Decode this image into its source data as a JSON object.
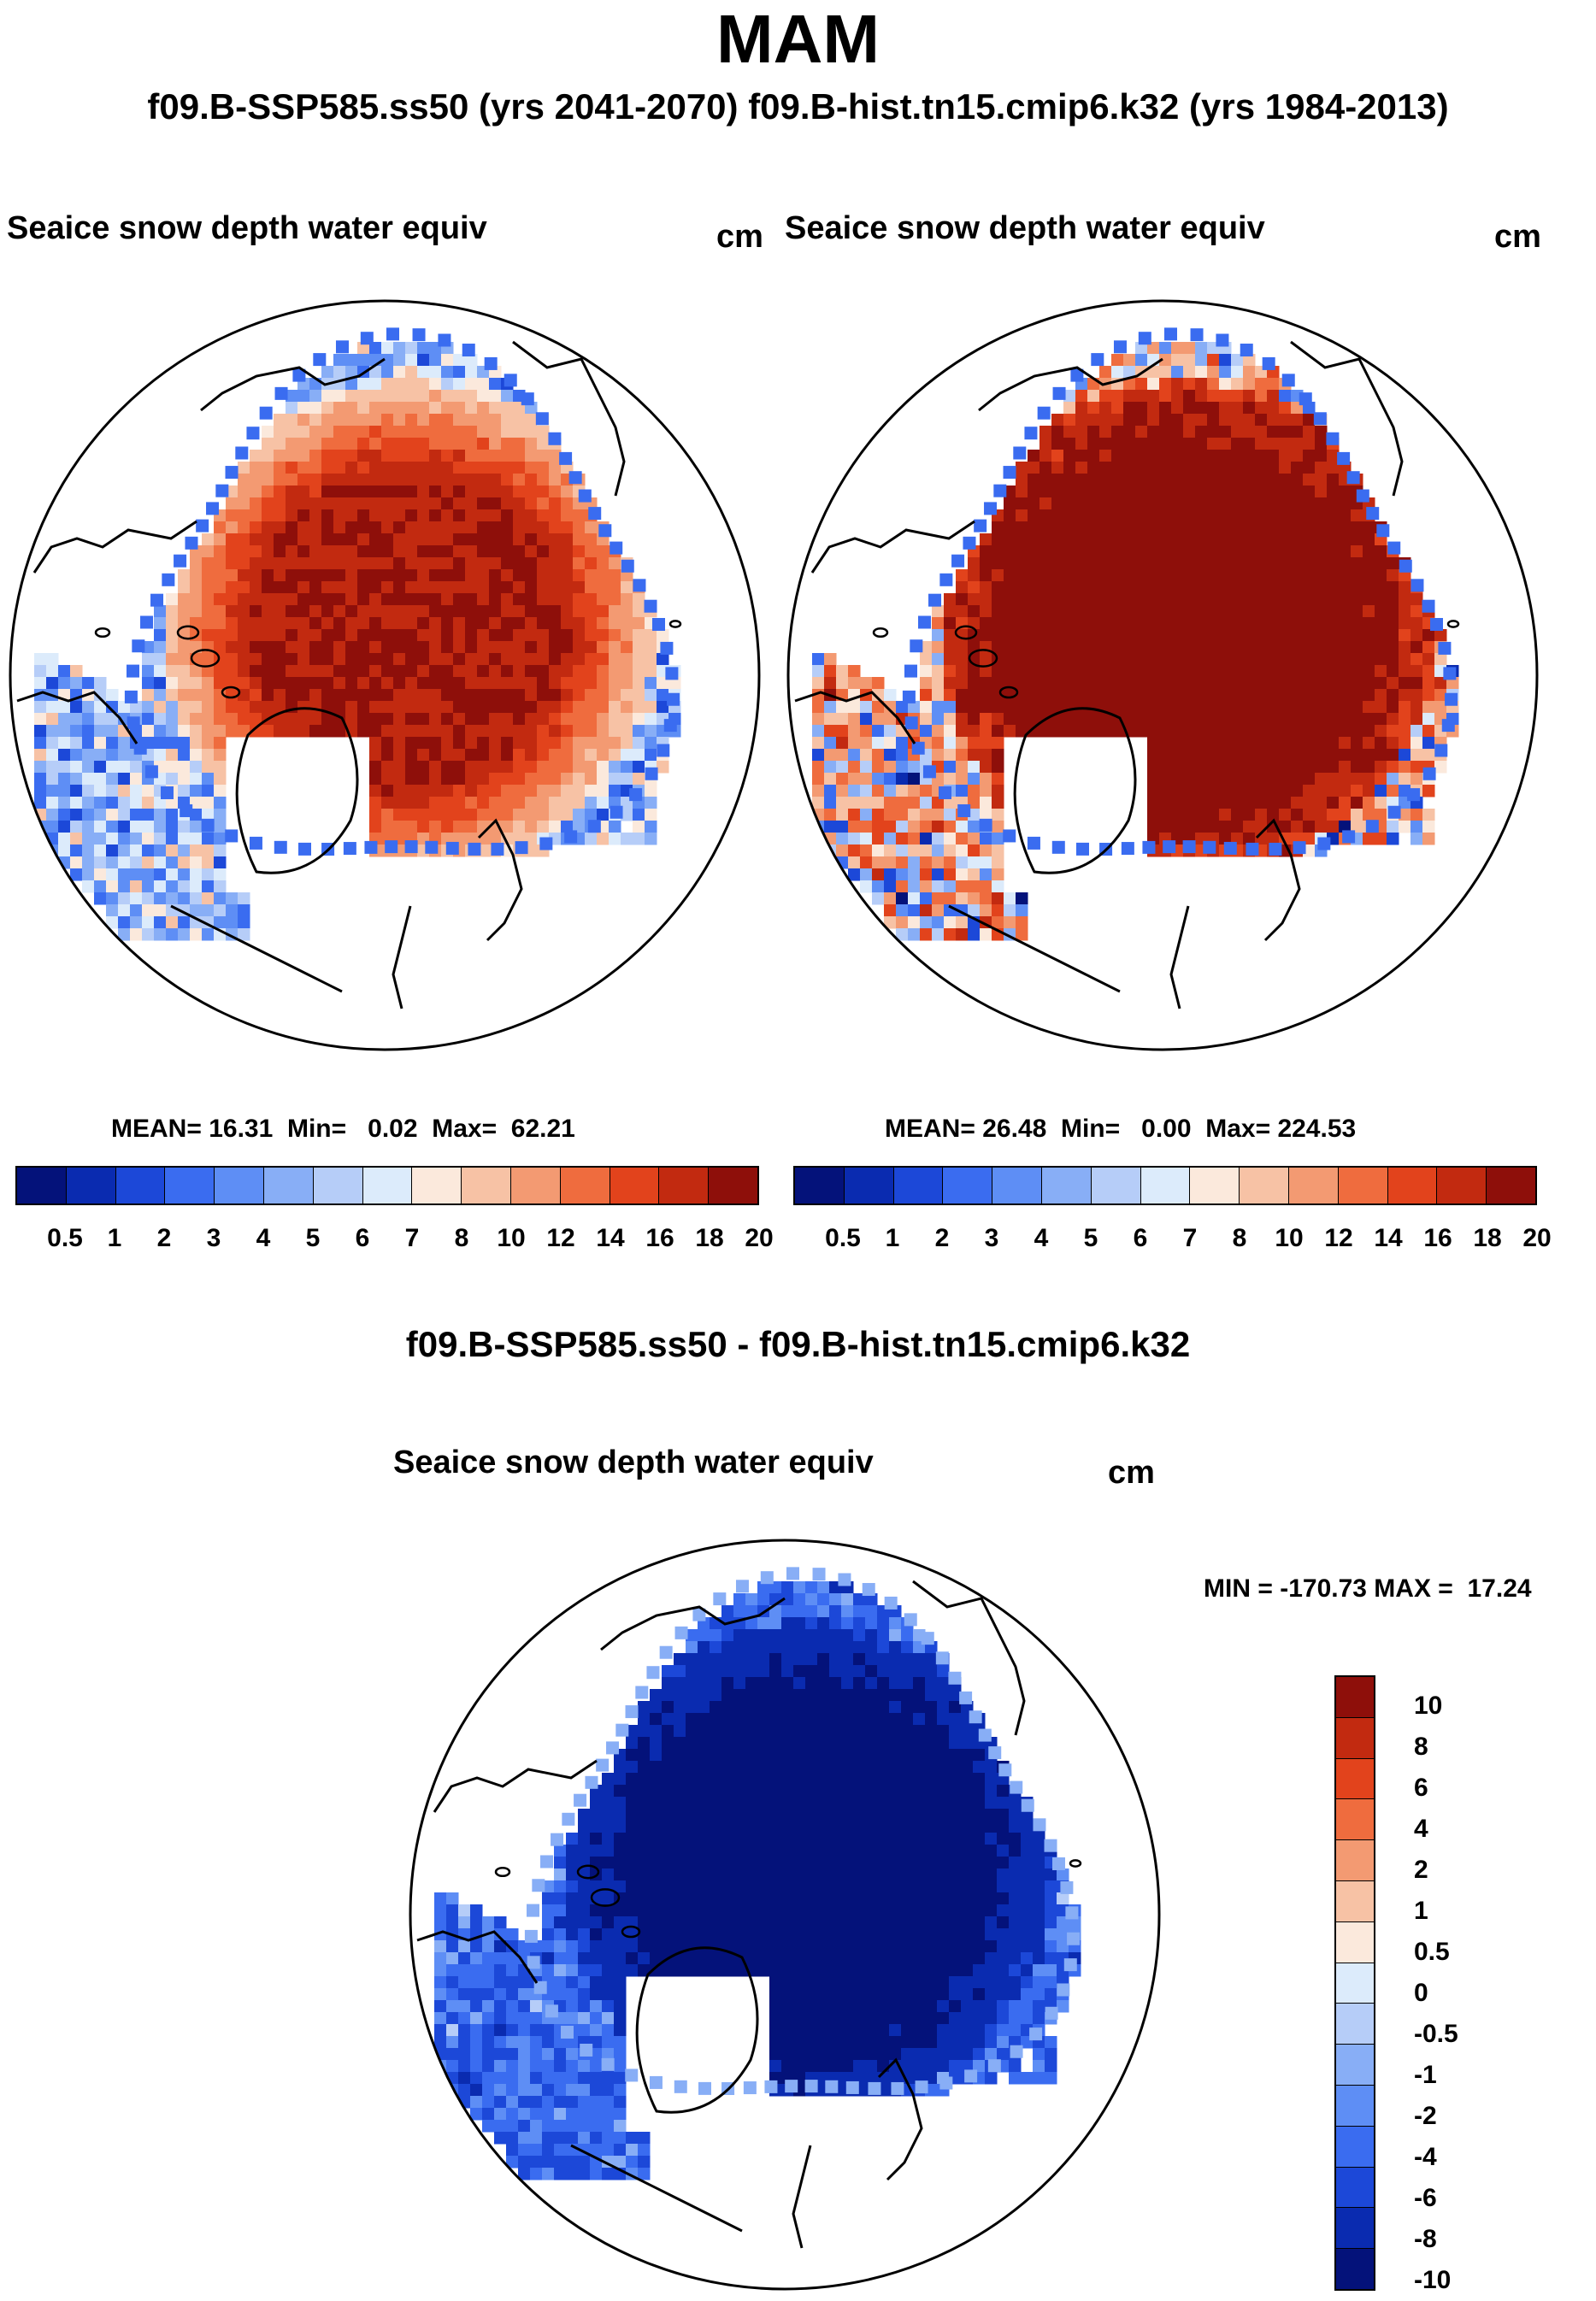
{
  "chart_data": [
    {
      "type": "heatmap",
      "panel": "top-left",
      "title": "Seaice snow depth water equiv",
      "units": "cm",
      "projection": "north polar stereographic",
      "stats": {
        "mean_label": "MEAN=",
        "mean": "16.31",
        "min_label": "Min=",
        "min": "0.02",
        "max_label": "Max=",
        "max": "62.21"
      },
      "colorbar_levels": [
        "0.5",
        "1",
        "2",
        "3",
        "4",
        "5",
        "6",
        "7",
        "8",
        "10",
        "12",
        "14",
        "16",
        "18",
        "20"
      ],
      "colorbar_colors": [
        "#04127a",
        "#0a2bb0",
        "#1c48d8",
        "#3a6cf0",
        "#5e8ef5",
        "#88aef6",
        "#b6cdf8",
        "#dcebfb",
        "#fbe9dc",
        "#f7c2a5",
        "#f39a72",
        "#ef6c3e",
        "#e2431c",
        "#c22a10",
        "#8e0f0a"
      ],
      "ice_distribution": {
        "central_arctic": 18,
        "periphery": 8,
        "edge": 2
      }
    },
    {
      "type": "heatmap",
      "panel": "top-right",
      "title": "Seaice snow depth water equiv",
      "units": "cm",
      "projection": "north polar stereographic",
      "stats": {
        "mean_label": "MEAN=",
        "mean": "26.48",
        "min_label": "Min=",
        "min": "0.00",
        "max_label": "Max=",
        "max": "224.53"
      },
      "colorbar_levels": [
        "0.5",
        "1",
        "2",
        "3",
        "4",
        "5",
        "6",
        "7",
        "8",
        "10",
        "12",
        "14",
        "16",
        "18",
        "20"
      ],
      "colorbar_colors": [
        "#04127a",
        "#0a2bb0",
        "#1c48d8",
        "#3a6cf0",
        "#5e8ef5",
        "#88aef6",
        "#b6cdf8",
        "#dcebfb",
        "#fbe9dc",
        "#f7c2a5",
        "#f39a72",
        "#ef6c3e",
        "#e2431c",
        "#c22a10",
        "#8e0f0a"
      ],
      "ice_distribution": {
        "central_arctic": 22,
        "periphery": 16,
        "edge": 2
      }
    },
    {
      "type": "heatmap",
      "panel": "bottom",
      "title": "Seaice snow depth water equiv",
      "units": "cm",
      "projection": "north polar stereographic",
      "stats": {
        "min_label": "MIN =",
        "min": "-170.73",
        "max_label": "MAX =",
        "max": "17.24"
      },
      "colorbar_levels": [
        "10",
        "8",
        "6",
        "4",
        "2",
        "1",
        "0.5",
        "0",
        "-0.5",
        "-1",
        "-2",
        "-4",
        "-6",
        "-8",
        "-10"
      ],
      "colorbar_colors": [
        "#8e0f0a",
        "#c22a10",
        "#e2431c",
        "#ef6c3e",
        "#f39a72",
        "#f7c2a5",
        "#fbe9dc",
        "#dcebfb",
        "#b6cdf8",
        "#88aef6",
        "#5e8ef5",
        "#3a6cf0",
        "#1c48d8",
        "#0a2bb0",
        "#04127a"
      ],
      "ice_distribution": {
        "central_arctic": -10,
        "periphery": -6,
        "edge": -1
      }
    }
  ],
  "header": {
    "season": "MAM",
    "subtitle": "f09.B-SSP585.ss50 (yrs 2041-2070)  f09.B-hist.tn15.cmip6.k32 (yrs 1984-2013)",
    "diff_title": "f09.B-SSP585.ss50 - f09.B-hist.tn15.cmip6.k32"
  },
  "colors": {
    "land_outline": "#000000",
    "background": "#ffffff"
  }
}
